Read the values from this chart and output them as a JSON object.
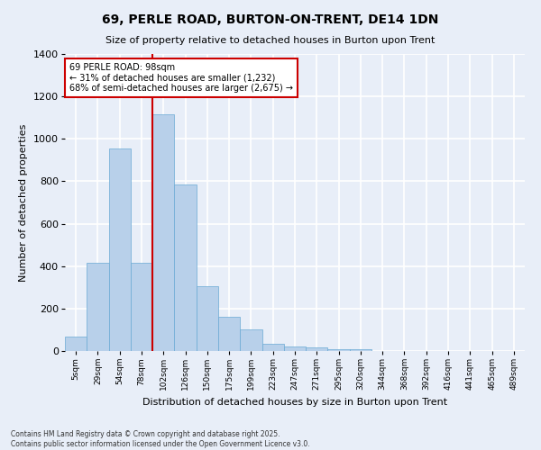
{
  "title": "69, PERLE ROAD, BURTON-ON-TRENT, DE14 1DN",
  "subtitle": "Size of property relative to detached houses in Burton upon Trent",
  "xlabel": "Distribution of detached houses by size in Burton upon Trent",
  "ylabel": "Number of detached properties",
  "bar_color": "#b8d0ea",
  "bar_edge_color": "#6aaad4",
  "background_color": "#e8eef8",
  "grid_color": "#ffffff",
  "annotation_text": "69 PERLE ROAD: 98sqm\n← 31% of detached houses are smaller (1,232)\n68% of semi-detached houses are larger (2,675) →",
  "annotation_box_color": "#ffffff",
  "annotation_box_edge": "#cc0000",
  "vline_color": "#cc0000",
  "categories": [
    "5sqm",
    "29sqm",
    "54sqm",
    "78sqm",
    "102sqm",
    "126sqm",
    "150sqm",
    "175sqm",
    "199sqm",
    "223sqm",
    "247sqm",
    "271sqm",
    "295sqm",
    "320sqm",
    "344sqm",
    "368sqm",
    "392sqm",
    "416sqm",
    "441sqm",
    "465sqm",
    "489sqm"
  ],
  "values": [
    68,
    415,
    955,
    415,
    1115,
    785,
    305,
    160,
    100,
    35,
    20,
    18,
    10,
    8,
    2,
    1,
    1,
    0,
    0,
    0,
    0
  ],
  "ylim": [
    0,
    1400
  ],
  "yticks": [
    0,
    200,
    400,
    600,
    800,
    1000,
    1200,
    1400
  ],
  "footnote": "Contains HM Land Registry data © Crown copyright and database right 2025.\nContains public sector information licensed under the Open Government Licence v3.0."
}
